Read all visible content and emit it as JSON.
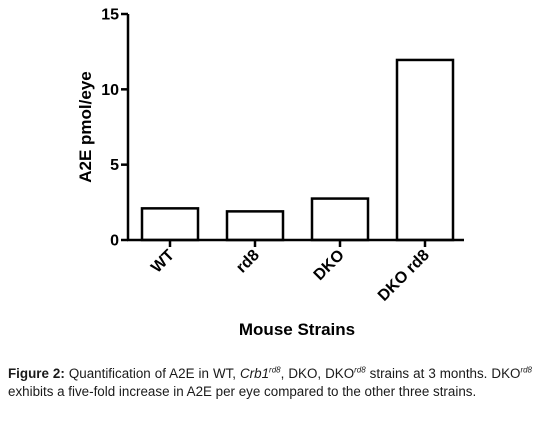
{
  "chart_data": {
    "type": "bar",
    "categories": [
      "WT",
      "rd8",
      "DKO",
      "DKO rd8"
    ],
    "values": [
      2.1,
      1.9,
      2.75,
      11.95
    ],
    "ylabel": "A2E  pmol/eye",
    "xlabel": "Mouse Strains",
    "ylim": [
      0,
      15
    ],
    "yticks": [
      0,
      5,
      10,
      15
    ],
    "grid": false,
    "bar_fill": "#ffffff",
    "bar_stroke": "#000000"
  },
  "caption": {
    "label": "Figure 2:",
    "t1": " Quantification of A2E in WT, ",
    "crb": "Crb1",
    "sup1": "rd8",
    "t2": ", DKO, DKO",
    "sup2": "rd8",
    "t3": " strains at 3 months. DKO",
    "sup3": "rd8",
    "t4": " exhibits a five-fold increase in A2E per eye compared to the other three strains."
  }
}
